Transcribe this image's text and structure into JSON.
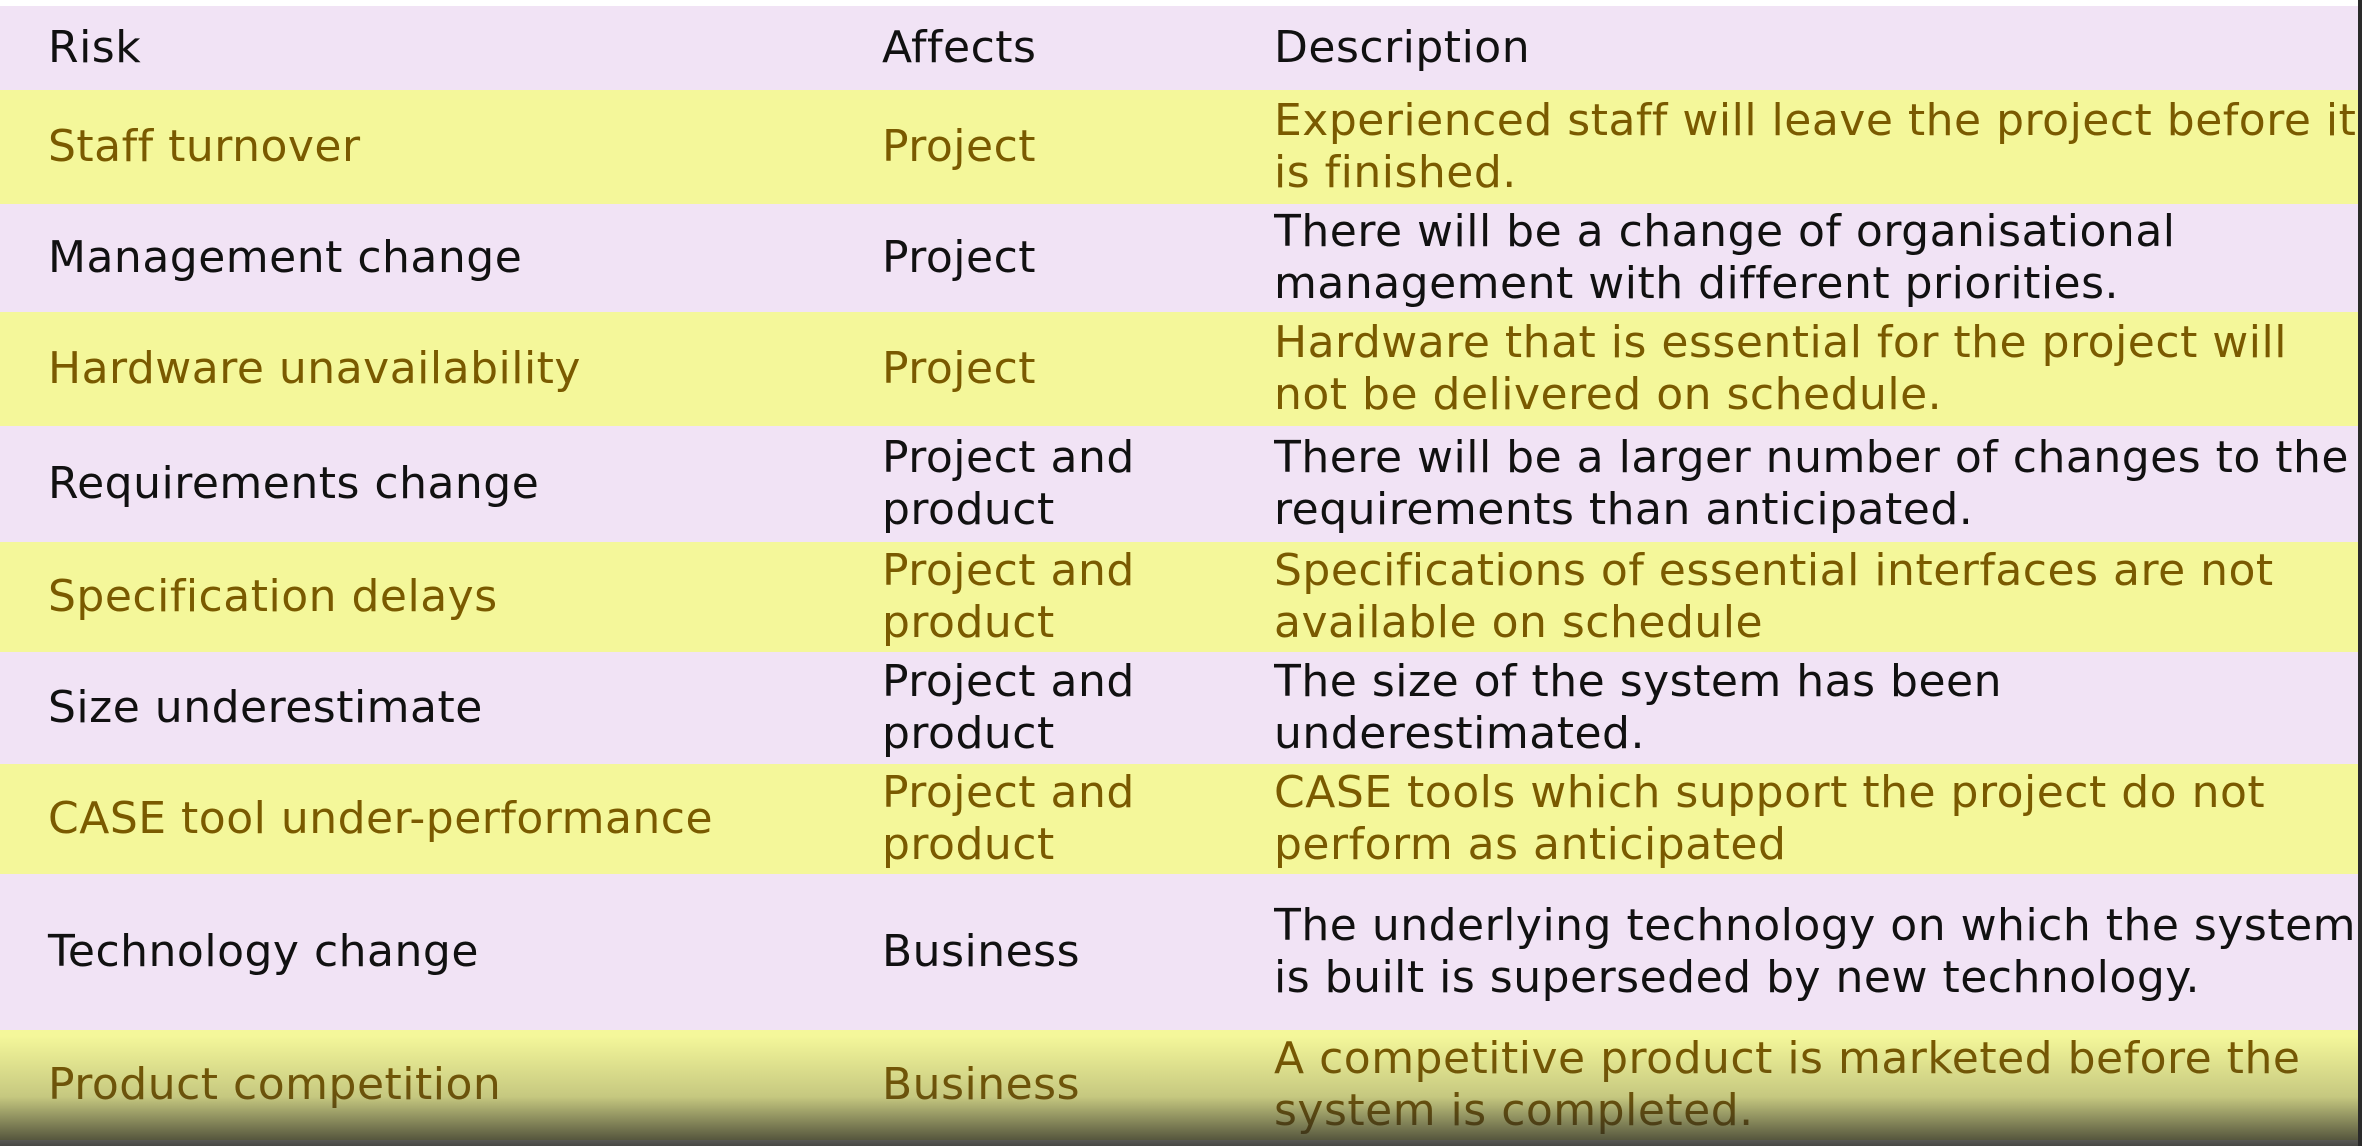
{
  "table": {
    "headers": [
      "Risk",
      "Affects",
      "Description"
    ],
    "rows": [
      {
        "risk": "Staff turnover",
        "affects": "Project",
        "description": "Experienced staff will leave the project before it is finished."
      },
      {
        "risk": "Management change",
        "affects": "Project",
        "description": "There will be a change of organisational management with different priorities."
      },
      {
        "risk": "Hardware unavailability",
        "affects": "Project",
        "description": "Hardware that is essential for the project will not be delivered on schedule."
      },
      {
        "risk": "Requirements change",
        "affects": "Project and product",
        "description": "There will be a larger number of changes to the requirements than anticipated."
      },
      {
        "risk": "Specification delays",
        "affects": "Project and product",
        "description": "Specifications of essential interfaces are not available on schedule"
      },
      {
        "risk": "Size underestimate",
        "affects": "Project and product",
        "description": "The size of the system has been underestimated."
      },
      {
        "risk": "CASE tool under-performance",
        "affects": "Project and product",
        "description": "CASE tools which support the project do not perform as anticipated"
      },
      {
        "risk": "Technology change",
        "affects": "Business",
        "description": "The underlying technology on which the system is built is superseded by new technology."
      },
      {
        "risk": "Product competition",
        "affects": "Business",
        "description": "A competitive product is marketed before the system is completed."
      }
    ]
  },
  "colors": {
    "header_background": "#f1e3f5",
    "alternate_row_background": "#f4f79a",
    "alternate_row_text": "#7a5a00",
    "plain_row_background": "#f1e3f5",
    "plain_row_text": "#111111"
  }
}
